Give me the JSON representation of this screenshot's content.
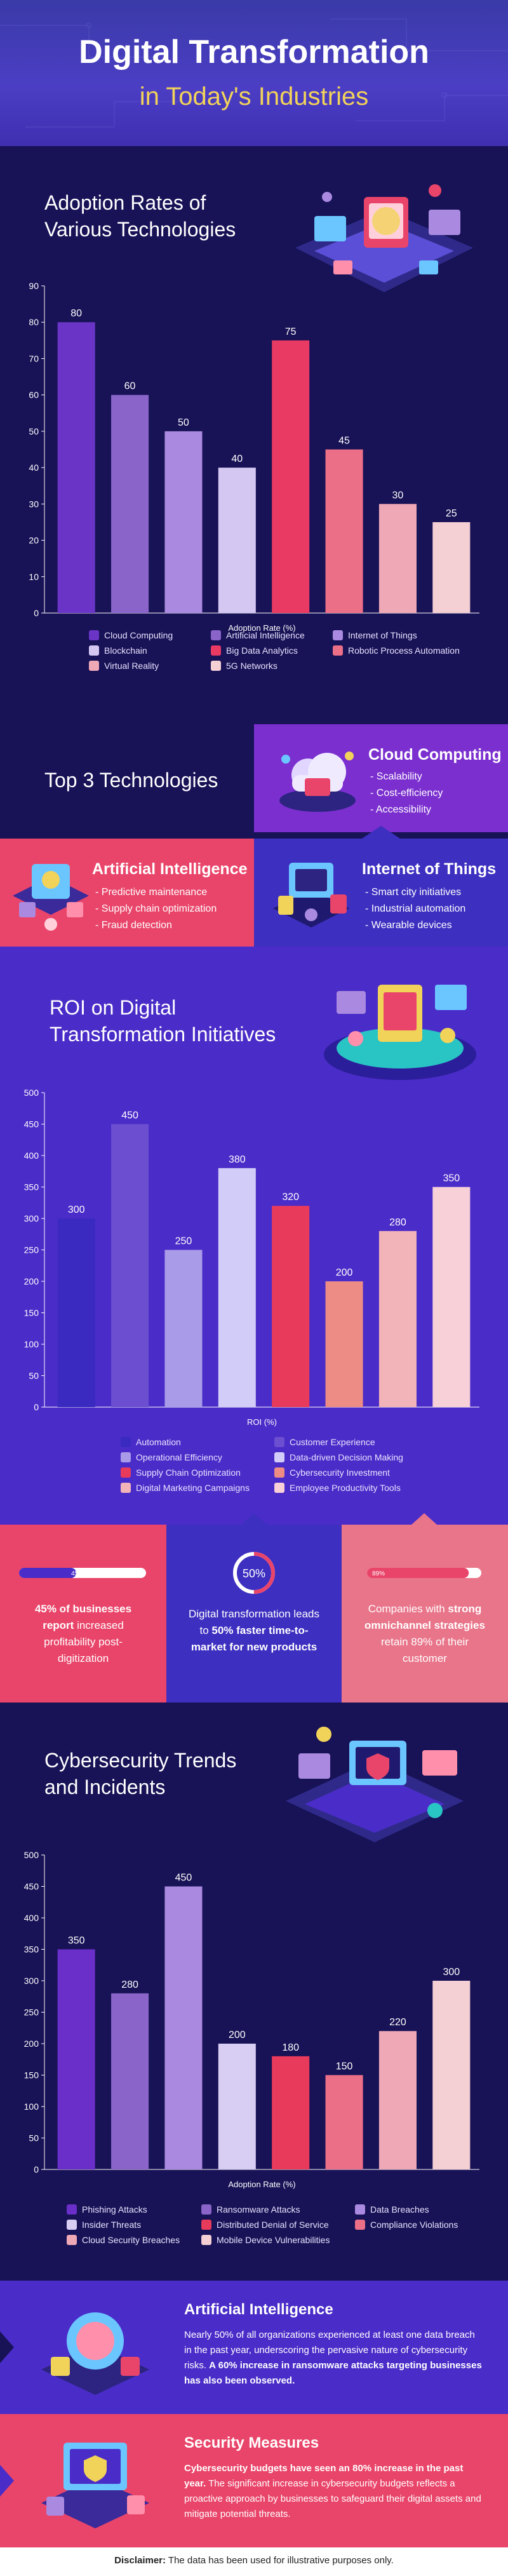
{
  "header": {
    "title": "Digital Transformation",
    "subtitle": "in Today's Industries"
  },
  "adoption": {
    "title_line1": "Adoption Rates of",
    "title_line2": "Various Technologies"
  },
  "top3": {
    "title": "Top 3 Technologies",
    "cards": [
      {
        "title": "Cloud Computing",
        "items": [
          "- Scalability",
          "- Cost-efficiency",
          "- Accessibility"
        ]
      },
      {
        "title": "Artificial Intelligence",
        "items": [
          "- Predictive maintenance",
          "- Supply chain optimization",
          "- Fraud detection"
        ]
      },
      {
        "title": "Internet of Things",
        "items": [
          "- Smart city initiatives",
          "- Industrial automation",
          "- Wearable devices"
        ]
      }
    ]
  },
  "roi": {
    "title_line1": "ROI on Digital",
    "title_line2": "Transformation Initiatives"
  },
  "stats": {
    "s1": {
      "badge": "45%",
      "text_bold": "45% of businesses report",
      "text_rest": " increased profitability post-digitization"
    },
    "s2": {
      "badge": "50%",
      "text_pre": "Digital transformation leads to ",
      "text_bold": "50% faster time-to-market for new products"
    },
    "s3": {
      "badge": "89%",
      "text_pre": "Companies with ",
      "text_bold": "strong omnichannel strategies",
      "text_rest": " retain 89% of their customer"
    }
  },
  "cyber": {
    "title_line1": "Cybersecurity Trends",
    "title_line2": "and Incidents"
  },
  "info": {
    "ai": {
      "title": "Artificial Intelligence",
      "text_pre": "Nearly 50% of all organizations experienced at least one data breach in the past year, underscoring the pervasive nature of cybersecurity risks. ",
      "text_bold": "A 60% increase in ransomware attacks targeting businesses has also been observed."
    },
    "security": {
      "title": "Security Measures",
      "text_bold": "Cybersecurity budgets have seen an 80% increase in the past year.",
      "text_rest": " The significant increase in cybersecurity budgets reflects a proactive approach by businesses to safeguard their digital assets and mitigate potential threats."
    }
  },
  "footer": {
    "label": "Disclaimer:",
    "text": " The data has been used for illustrative purposes only."
  },
  "colors": {
    "dark_bg": "#181256",
    "purple_bg": "#4a2cc8",
    "pink": "#e9456a",
    "yellow": "#f2d35a"
  },
  "chart_data": [
    {
      "type": "bar",
      "id": "adoption",
      "title": "Adoption Rates of Various Technologies",
      "xlabel": "Adoption Rate (%)",
      "ylim": [
        0,
        90
      ],
      "yticks": [
        0,
        10,
        20,
        30,
        40,
        50,
        60,
        70,
        80,
        90
      ],
      "categories": [
        "Cloud Computing",
        "Artificial Intelligence",
        "Internet of Things",
        "Blockchain",
        "Big Data Analytics",
        "Robotic Process Automation",
        "Virtual Reality",
        "5G Networks"
      ],
      "values": [
        80,
        60,
        50,
        40,
        75,
        45,
        30,
        25
      ],
      "colors": [
        "#6a35c6",
        "#8a64c9",
        "#a98ae0",
        "#d4c8f2",
        "#e83a62",
        "#ec6f88",
        "#efa9b6",
        "#f4cfd4"
      ],
      "legend_cols": 3
    },
    {
      "type": "bar",
      "id": "roi",
      "title": "ROI on Digital Transformation Initiatives",
      "xlabel": "ROI (%)",
      "ylim": [
        0,
        500
      ],
      "yticks": [
        0,
        50,
        100,
        150,
        200,
        250,
        300,
        350,
        400,
        450,
        500
      ],
      "categories": [
        "Automation",
        "Customer Experience",
        "Operational Efficiency",
        "Data-driven Decision Making",
        "Supply Chain Optimization",
        "Cybersecurity Investment",
        "Digital Marketing Campaigns",
        "Employee Productivity Tools"
      ],
      "values": [
        300,
        450,
        250,
        380,
        320,
        200,
        280,
        350
      ],
      "colors": [
        "#3a2ac0",
        "#6c4fd0",
        "#a99be8",
        "#d2ccf8",
        "#e83a5a",
        "#ec8c84",
        "#f2b4b8",
        "#f8d0d8"
      ],
      "legend_cols": 2
    },
    {
      "type": "bar",
      "id": "cyber",
      "title": "Cybersecurity Trends and Incidents",
      "xlabel": "Adoption Rate (%)",
      "ylim": [
        0,
        500
      ],
      "yticks": [
        0,
        50,
        100,
        150,
        200,
        250,
        300,
        350,
        400,
        450,
        500
      ],
      "categories": [
        "Phishing Attacks",
        "Ransomware Attacks",
        "Data Breaches",
        "Insider Threats",
        "Distributed Denial of Service",
        "Compliance Violations",
        "Cloud Security Breaches",
        "Mobile Device Vulnerabilities"
      ],
      "values": [
        350,
        280,
        450,
        200,
        180,
        150,
        220,
        300
      ],
      "colors": [
        "#6a2fc8",
        "#8a64c9",
        "#a98ae0",
        "#d8cdf3",
        "#e83a5a",
        "#ec6f88",
        "#efa9b6",
        "#f4cfd4"
      ],
      "legend_cols": 3
    }
  ]
}
